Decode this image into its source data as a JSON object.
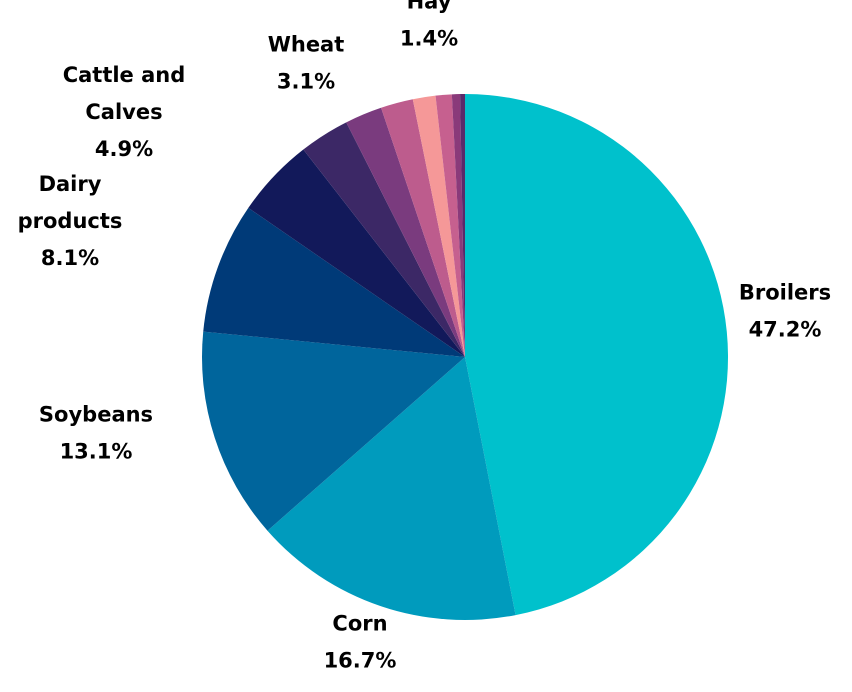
{
  "chart_data": {
    "type": "pie",
    "title": "",
    "legend": "none",
    "slices": [
      {
        "name": "Broilers",
        "name_lines": [
          "Broilers"
        ],
        "value": 47.2,
        "value_label": "47.2%",
        "color": "#00C1CC",
        "labeled": true
      },
      {
        "name": "Corn",
        "name_lines": [
          "Corn"
        ],
        "value": 16.7,
        "value_label": "16.7%",
        "color": "#009BBD",
        "labeled": true
      },
      {
        "name": "Soybeans",
        "name_lines": [
          "Soybeans"
        ],
        "value": 13.1,
        "value_label": "13.1%",
        "color": "#00659C",
        "labeled": true
      },
      {
        "name": "Dairy products",
        "name_lines": [
          "Dairy",
          "products"
        ],
        "value": 8.1,
        "value_label": "8.1%",
        "color": "#003A78",
        "labeled": true
      },
      {
        "name": "Cattle and Calves",
        "name_lines": [
          "Cattle and",
          "Calves"
        ],
        "value": 4.9,
        "value_label": "4.9%",
        "color": "#12195A",
        "labeled": true
      },
      {
        "name": "Wheat",
        "name_lines": [
          "Wheat"
        ],
        "value": 3.1,
        "value_label": "3.1%",
        "color": "#3C2866",
        "labeled": true
      },
      {
        "name": "",
        "value": 2.3,
        "color": "#7A3B7E",
        "labeled": false
      },
      {
        "name": "",
        "value": 2.0,
        "color": "#BD5C8D",
        "labeled": false
      },
      {
        "name": "Hay",
        "name_lines": [
          "Hay"
        ],
        "value": 1.4,
        "value_label": "1.4%",
        "color": "#F59898",
        "labeled": true
      },
      {
        "name": "",
        "value": 1.0,
        "color": "#C6608F",
        "labeled": false
      },
      {
        "name": "",
        "value": 0.5,
        "color": "#8A3A7A",
        "labeled": false
      },
      {
        "name": "",
        "value": 0.3,
        "color": "#5A2A6A",
        "labeled": false
      }
    ]
  }
}
